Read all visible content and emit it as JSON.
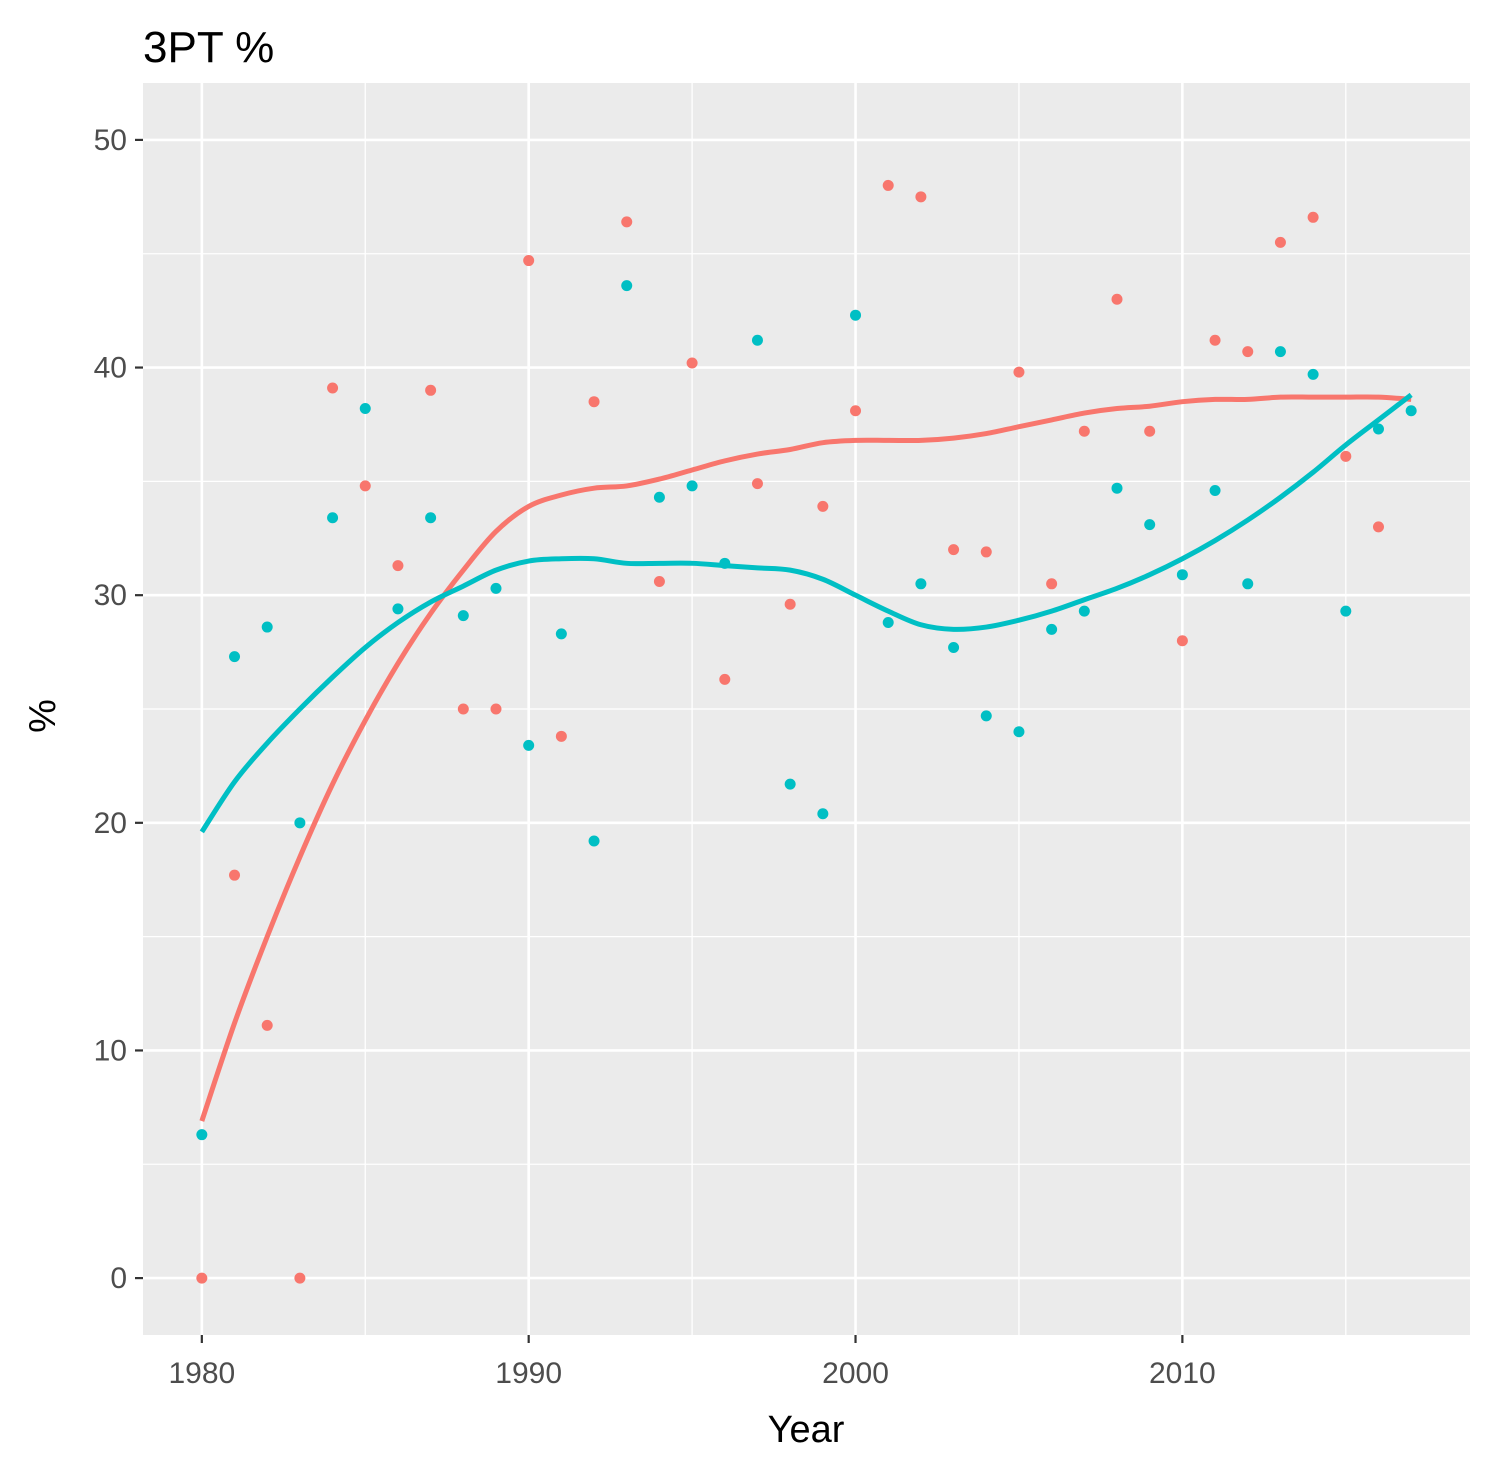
{
  "chart_data": {
    "type": "scatter",
    "title": "3PT %",
    "xlabel": "Year",
    "ylabel": "%",
    "xlim": [
      1978.2,
      2018.8
    ],
    "ylim": [
      -2.5,
      52.5
    ],
    "x_ticks": [
      1980,
      1990,
      2000,
      2010
    ],
    "x_minor_ticks": [
      1985,
      1995,
      2005,
      2015
    ],
    "y_ticks": [
      0,
      10,
      20,
      30,
      40,
      50
    ],
    "y_minor_ticks": [
      5,
      15,
      25,
      35,
      45
    ],
    "x_tick_labels": [
      "1980",
      "1990",
      "2000",
      "2010"
    ],
    "y_tick_labels": [
      "0",
      "10",
      "20",
      "30",
      "40",
      "50"
    ],
    "grid": true,
    "legend": "none",
    "panel_background": "#EBEBEB",
    "series": [
      {
        "color": "#F8766D",
        "points": [
          [
            1980,
            0.0
          ],
          [
            1981,
            17.7
          ],
          [
            1982,
            11.1
          ],
          [
            1983,
            0.0
          ],
          [
            1984,
            39.1
          ],
          [
            1985,
            34.8
          ],
          [
            1986,
            31.3
          ],
          [
            1987,
            39.0
          ],
          [
            1988,
            25.0
          ],
          [
            1989,
            25.0
          ],
          [
            1990,
            44.7
          ],
          [
            1991,
            23.8
          ],
          [
            1992,
            38.5
          ],
          [
            1993,
            46.4
          ],
          [
            1994,
            30.6
          ],
          [
            1995,
            40.2
          ],
          [
            1996,
            26.3
          ],
          [
            1997,
            34.9
          ],
          [
            1998,
            29.6
          ],
          [
            1999,
            33.9
          ],
          [
            2000,
            38.1
          ],
          [
            2001,
            48.0
          ],
          [
            2002,
            47.5
          ],
          [
            2003,
            32.0
          ],
          [
            2004,
            31.9
          ],
          [
            2005,
            39.8
          ],
          [
            2006,
            30.5
          ],
          [
            2007,
            37.2
          ],
          [
            2008,
            43.0
          ],
          [
            2009,
            37.2
          ],
          [
            2010,
            28.0
          ],
          [
            2011,
            41.2
          ],
          [
            2012,
            40.7
          ],
          [
            2013,
            45.5
          ],
          [
            2014,
            46.6
          ],
          [
            2015,
            36.1
          ],
          [
            2016,
            33.0
          ]
        ],
        "smooth": [
          [
            1980,
            6.9
          ],
          [
            1981,
            11.2
          ],
          [
            1982,
            15.0
          ],
          [
            1983,
            18.5
          ],
          [
            1984,
            21.7
          ],
          [
            1985,
            24.5
          ],
          [
            1986,
            27.0
          ],
          [
            1987,
            29.2
          ],
          [
            1988,
            31.1
          ],
          [
            1989,
            32.8
          ],
          [
            1990,
            33.9
          ],
          [
            1991,
            34.4
          ],
          [
            1992,
            34.7
          ],
          [
            1993,
            34.8
          ],
          [
            1994,
            35.1
          ],
          [
            1995,
            35.5
          ],
          [
            1996,
            35.9
          ],
          [
            1997,
            36.2
          ],
          [
            1998,
            36.4
          ],
          [
            1999,
            36.7
          ],
          [
            2000,
            36.8
          ],
          [
            2001,
            36.8
          ],
          [
            2002,
            36.8
          ],
          [
            2003,
            36.9
          ],
          [
            2004,
            37.1
          ],
          [
            2005,
            37.4
          ],
          [
            2006,
            37.7
          ],
          [
            2007,
            38.0
          ],
          [
            2008,
            38.2
          ],
          [
            2009,
            38.3
          ],
          [
            2010,
            38.5
          ],
          [
            2011,
            38.6
          ],
          [
            2012,
            38.6
          ],
          [
            2013,
            38.7
          ],
          [
            2014,
            38.7
          ],
          [
            2015,
            38.7
          ],
          [
            2016,
            38.7
          ],
          [
            2017,
            38.6
          ]
        ]
      },
      {
        "color": "#00BFC4",
        "points": [
          [
            1980,
            6.3
          ],
          [
            1981,
            27.3
          ],
          [
            1982,
            28.6
          ],
          [
            1983,
            20.0
          ],
          [
            1984,
            33.4
          ],
          [
            1985,
            38.2
          ],
          [
            1986,
            29.4
          ],
          [
            1987,
            33.4
          ],
          [
            1988,
            29.1
          ],
          [
            1989,
            30.3
          ],
          [
            1990,
            23.4
          ],
          [
            1991,
            28.3
          ],
          [
            1992,
            19.2
          ],
          [
            1993,
            43.6
          ],
          [
            1994,
            34.3
          ],
          [
            1995,
            34.8
          ],
          [
            1996,
            31.4
          ],
          [
            1997,
            41.2
          ],
          [
            1998,
            21.7
          ],
          [
            1999,
            20.4
          ],
          [
            2000,
            42.3
          ],
          [
            2001,
            28.8
          ],
          [
            2002,
            30.5
          ],
          [
            2003,
            27.7
          ],
          [
            2004,
            24.7
          ],
          [
            2005,
            24.0
          ],
          [
            2006,
            28.5
          ],
          [
            2007,
            29.3
          ],
          [
            2008,
            34.7
          ],
          [
            2009,
            33.1
          ],
          [
            2010,
            30.9
          ],
          [
            2011,
            34.6
          ],
          [
            2012,
            30.5
          ],
          [
            2013,
            40.7
          ],
          [
            2014,
            39.7
          ],
          [
            2015,
            29.3
          ],
          [
            2016,
            37.3
          ],
          [
            2017,
            38.1
          ]
        ],
        "smooth": [
          [
            1980,
            19.6
          ],
          [
            1981,
            21.8
          ],
          [
            1982,
            23.5
          ],
          [
            1983,
            25.0
          ],
          [
            1984,
            26.4
          ],
          [
            1985,
            27.7
          ],
          [
            1986,
            28.8
          ],
          [
            1987,
            29.7
          ],
          [
            1988,
            30.4
          ],
          [
            1989,
            31.1
          ],
          [
            1990,
            31.5
          ],
          [
            1991,
            31.6
          ],
          [
            1992,
            31.6
          ],
          [
            1993,
            31.4
          ],
          [
            1994,
            31.4
          ],
          [
            1995,
            31.4
          ],
          [
            1996,
            31.3
          ],
          [
            1997,
            31.2
          ],
          [
            1998,
            31.1
          ],
          [
            1999,
            30.7
          ],
          [
            2000,
            30.0
          ],
          [
            2001,
            29.3
          ],
          [
            2002,
            28.7
          ],
          [
            2003,
            28.5
          ],
          [
            2004,
            28.6
          ],
          [
            2005,
            28.9
          ],
          [
            2006,
            29.3
          ],
          [
            2007,
            29.8
          ],
          [
            2008,
            30.3
          ],
          [
            2009,
            30.9
          ],
          [
            2010,
            31.6
          ],
          [
            2011,
            32.4
          ],
          [
            2012,
            33.3
          ],
          [
            2013,
            34.3
          ],
          [
            2014,
            35.4
          ],
          [
            2015,
            36.6
          ],
          [
            2016,
            37.7
          ],
          [
            2017,
            38.8
          ]
        ]
      }
    ]
  }
}
